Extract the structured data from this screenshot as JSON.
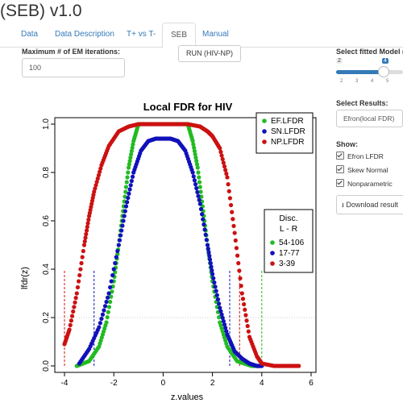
{
  "app": {
    "title": "(SEB) v1.0"
  },
  "tabs": [
    "Data",
    "Data Description",
    "T+ vs T-",
    "SEB",
    "Manual"
  ],
  "active_tab": "SEB",
  "em": {
    "label": "Maximum # of EM iterations:",
    "value": "100"
  },
  "run_button": "RUN (HIV-NP)",
  "model_slider": {
    "label": "Select fitted Model (",
    "min_label": "2",
    "value_label": "4",
    "ticks": [
      "2",
      "3",
      "4",
      "5"
    ],
    "value": 4
  },
  "results": {
    "label": "Select Results:",
    "selected": "Efron(local FDR)"
  },
  "show": {
    "label": "Show:",
    "options": [
      "Efron LFDR",
      "Skew Normal",
      "Nonparametric"
    ]
  },
  "download_button": "Download result",
  "colors": {
    "green": "#22bb22",
    "blue": "#1111bb",
    "red": "#cc1111",
    "tab_link": "#337ab7",
    "slider": "#337ab7"
  },
  "chart_data": {
    "type": "scatter",
    "title": "Local FDR for  HIV",
    "xlabel": "z.values",
    "ylabel": "lfdr(z)",
    "xlim": [
      -4,
      6
    ],
    "ylim": [
      0,
      1
    ],
    "xticks": [
      "-4",
      "-2",
      "0",
      "2",
      "4",
      "6"
    ],
    "yticks": [
      "0.0",
      "0.2",
      "0.4",
      "0.6",
      "0.8",
      "1.0"
    ],
    "legend": {
      "position": "top-right",
      "entries": [
        "EF.LFDR",
        "SN.LFDR",
        "NP.LFDR"
      ]
    },
    "legend2": {
      "title": "Disc.",
      "subtitle": "L - R",
      "position": "right",
      "entries": [
        "54-106",
        "17-77",
        "3-39"
      ]
    },
    "hline": 0.2,
    "series": [
      {
        "name": "EF.LFDR",
        "color": "#22bb22",
        "x": [
          -3.5,
          -3.0,
          -2.6,
          -2.3,
          -2.0,
          -1.8,
          -1.6,
          -1.4,
          -1.2,
          -1.0,
          -0.6,
          0,
          0.6,
          1.0,
          1.2,
          1.4,
          1.6,
          1.8,
          2.0,
          2.3,
          2.6,
          3.0,
          3.3,
          3.6,
          3.9
        ],
        "y": [
          0.0,
          0.02,
          0.08,
          0.18,
          0.35,
          0.5,
          0.66,
          0.82,
          0.93,
          1.0,
          1.0,
          1.0,
          1.0,
          1.0,
          0.93,
          0.82,
          0.66,
          0.5,
          0.35,
          0.18,
          0.08,
          0.02,
          0.01,
          0.0,
          0.0
        ]
      },
      {
        "name": "SN.LFDR",
        "color": "#1111bb",
        "x": [
          -3.4,
          -3.0,
          -2.6,
          -2.2,
          -1.8,
          -1.5,
          -1.2,
          -0.9,
          -0.6,
          -0.3,
          0,
          0.3,
          0.6,
          0.9,
          1.2,
          1.5,
          1.8,
          2.0,
          2.3,
          2.6,
          2.9,
          3.2,
          3.5,
          3.8,
          4.0
        ],
        "y": [
          0.01,
          0.07,
          0.16,
          0.3,
          0.5,
          0.66,
          0.8,
          0.89,
          0.93,
          0.94,
          0.94,
          0.94,
          0.93,
          0.89,
          0.8,
          0.67,
          0.5,
          0.38,
          0.24,
          0.13,
          0.06,
          0.03,
          0.01,
          0.0,
          0.0
        ]
      },
      {
        "name": "NP.LFDR",
        "color": "#cc1111",
        "x": [
          -4.0,
          -3.8,
          -3.5,
          -3.2,
          -3.0,
          -2.8,
          -2.5,
          -2.2,
          -1.8,
          -1.4,
          -1.0,
          -0.5,
          0,
          0.5,
          1.0,
          1.5,
          1.8,
          2.0,
          2.3,
          2.6,
          2.9,
          3.2,
          3.5,
          3.8,
          4.0,
          4.5,
          5.0,
          5.5
        ],
        "y": [
          0.09,
          0.15,
          0.3,
          0.5,
          0.62,
          0.72,
          0.83,
          0.91,
          0.97,
          0.99,
          1.0,
          1.0,
          1.0,
          1.0,
          1.0,
          0.99,
          0.97,
          0.95,
          0.9,
          0.78,
          0.55,
          0.3,
          0.12,
          0.04,
          0.01,
          0.0,
          0.0,
          0.0
        ]
      }
    ],
    "vlines": [
      {
        "x": -4.0,
        "color": "#22bb22"
      },
      {
        "x": 4.0,
        "color": "#22bb22"
      },
      {
        "x": -2.8,
        "color": "#1111bb"
      },
      {
        "x": 2.7,
        "color": "#1111bb"
      },
      {
        "x": -4.0,
        "color": "#cc1111"
      },
      {
        "x": 3.1,
        "color": "#cc1111"
      }
    ]
  }
}
